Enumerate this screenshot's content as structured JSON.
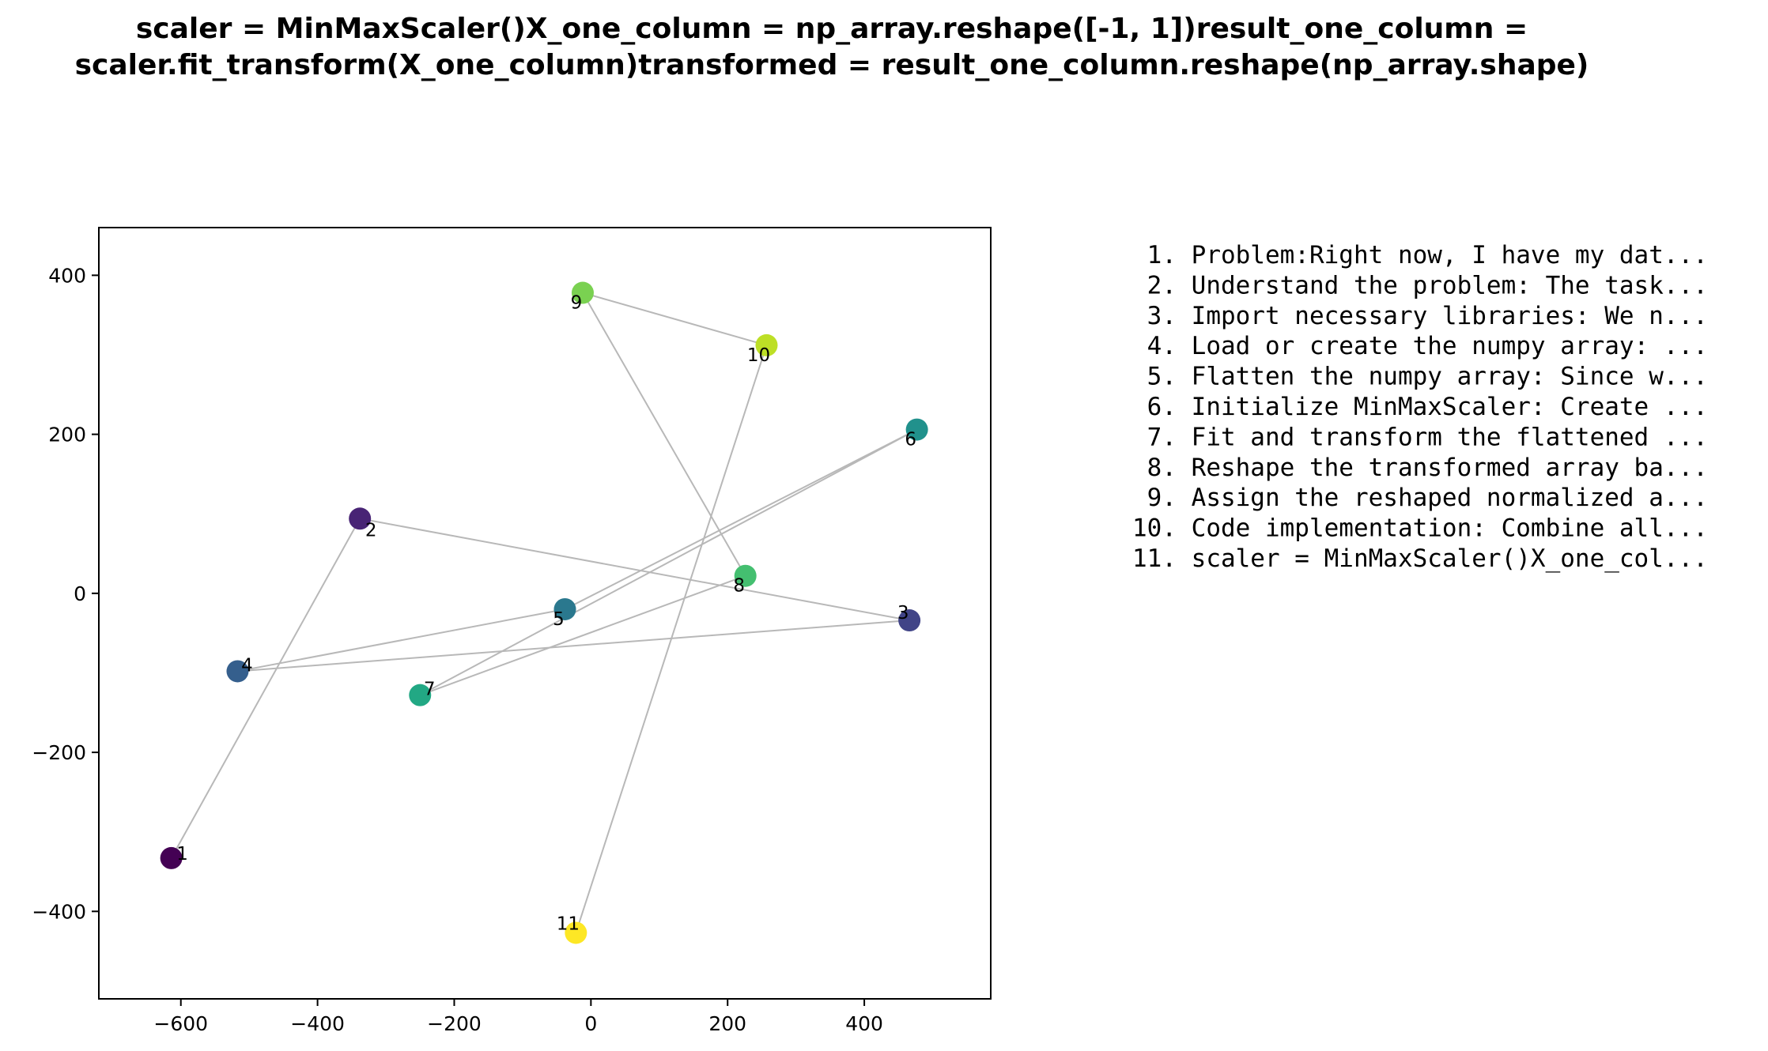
{
  "title": {
    "line1": "scaler = MinMaxScaler()X_one_column = np_array.reshape([-1, 1])result_one_column =",
    "line2": "scaler.fit_transform(X_one_column)transformed = result_one_column.reshape(np_array.shape)"
  },
  "chart_data": {
    "type": "scatter",
    "title": "scaler = MinMaxScaler()X_one_column = np_array.reshape([-1, 1])result_one_column = scaler.fit_transform(X_one_column)transformed = result_one_column.reshape(np_array.shape)",
    "xlabel": "",
    "ylabel": "",
    "xlim": [
      -720,
      585
    ],
    "ylim": [
      -510,
      460
    ],
    "xticks": [
      -600,
      -400,
      -200,
      0,
      200,
      400
    ],
    "yticks": [
      -400,
      -200,
      0,
      200,
      400
    ],
    "xtick_labels": [
      "−600",
      "−400",
      "−200",
      "0",
      "200",
      "400"
    ],
    "ytick_labels": [
      "−400",
      "−200",
      "0",
      "200",
      "400"
    ],
    "grid": false,
    "connect_in_order": true,
    "colormap": "viridis",
    "line_color": "#b8b8b8",
    "points": [
      {
        "label": "1",
        "x": -614,
        "y": -333,
        "color": "#440154"
      },
      {
        "label": "2",
        "x": -338,
        "y": 94,
        "color": "#482475"
      },
      {
        "label": "3",
        "x": 466,
        "y": -34,
        "color": "#414487"
      },
      {
        "label": "4",
        "x": -517,
        "y": -98,
        "color": "#355f8d"
      },
      {
        "label": "5",
        "x": -38,
        "y": -20,
        "color": "#2a788e"
      },
      {
        "label": "6",
        "x": 477,
        "y": 206,
        "color": "#21918c"
      },
      {
        "label": "7",
        "x": -250,
        "y": -128,
        "color": "#22a884"
      },
      {
        "label": "8",
        "x": 226,
        "y": 22,
        "color": "#44bf70"
      },
      {
        "label": "9",
        "x": -12,
        "y": 378,
        "color": "#7ad151"
      },
      {
        "label": "10",
        "x": 257,
        "y": 312,
        "color": "#bddf26"
      },
      {
        "label": "11",
        "x": -22,
        "y": -427,
        "color": "#fde725"
      }
    ]
  },
  "steps": [
    " 1. Problem:Right now, I have my dat...",
    " 2. Understand the problem: The task...",
    " 3. Import necessary libraries: We n...",
    " 4. Load or create the numpy array: ...",
    " 5. Flatten the numpy array: Since w...",
    " 6. Initialize MinMaxScaler: Create ...",
    " 7. Fit and transform the flattened ...",
    " 8. Reshape the transformed array ba...",
    " 9. Assign the reshaped normalized a...",
    "10. Code implementation: Combine all...",
    "11. scaler = MinMaxScaler()X_one_col..."
  ]
}
